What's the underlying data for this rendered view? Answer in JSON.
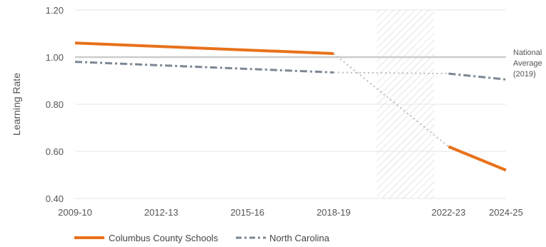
{
  "chart_data": {
    "type": "line",
    "title": "",
    "xlabel": "",
    "ylabel": "Learning Rate",
    "ylim": [
      0.4,
      1.2
    ],
    "y_ticks": [
      "0.40",
      "0.60",
      "0.80",
      "1.00",
      "1.20"
    ],
    "x_ticks": [
      "2009-10",
      "2012-13",
      "2015-16",
      "2018-19",
      "2022-23",
      "2024-25"
    ],
    "x_tick_years": [
      2009,
      2012,
      2015,
      2018,
      2022,
      2024
    ],
    "x_range": [
      2009,
      2024
    ],
    "grid": true,
    "reference_line": {
      "value": 1.0,
      "label_lines": [
        "National",
        "Average",
        "(2019)"
      ]
    },
    "gap_period": [
      2019.5,
      2021.5
    ],
    "series": [
      {
        "name": "Columbus County Schools",
        "color": "#E8711A",
        "style": "solid",
        "points": [
          [
            2009,
            1.06
          ],
          [
            2018,
            1.015
          ]
        ],
        "points_after": [
          [
            2022,
            0.62
          ],
          [
            2024,
            0.52
          ]
        ]
      },
      {
        "name": "North Carolina",
        "color": "#7B8794",
        "style": "dashed",
        "points": [
          [
            2009,
            0.98
          ],
          [
            2018,
            0.935
          ]
        ],
        "points_after": [
          [
            2022,
            0.93
          ],
          [
            2024,
            0.905
          ]
        ]
      }
    ],
    "connector_color": "#BBBBBB",
    "legend": "bottom-left"
  }
}
